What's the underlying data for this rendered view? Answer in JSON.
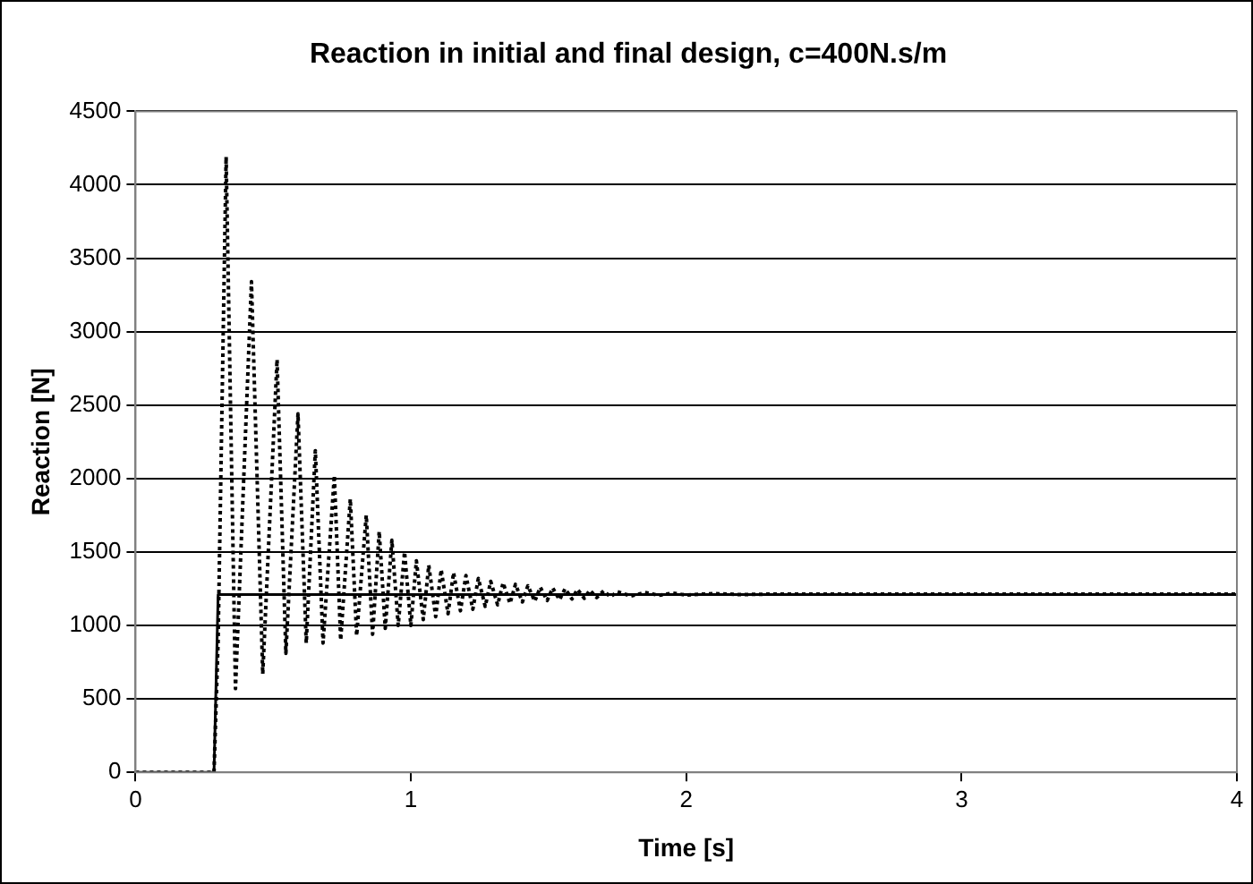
{
  "chart_data": {
    "type": "line",
    "title": "Reaction in initial and final design, c=400N.s/m",
    "xlabel": "Time [s]",
    "ylabel": "Reaction [N]",
    "xlim": [
      0,
      4
    ],
    "xticks": [
      0,
      1,
      2,
      3,
      4
    ],
    "ylim": [
      0,
      4500
    ],
    "yticks": [
      0,
      500,
      1000,
      1500,
      2000,
      2500,
      3000,
      3500,
      4000,
      4500
    ],
    "grid": "y",
    "legend": false,
    "marker": "none",
    "series": [
      {
        "color": "#000000",
        "line_style": "dotted",
        "x": [
          0,
          0.285,
          0.3,
          0.329,
          0.363,
          0.421,
          0.462,
          0.514,
          0.546,
          0.59,
          0.62,
          0.653,
          0.681,
          0.722,
          0.745,
          0.78,
          0.803,
          0.838,
          0.861,
          0.885,
          0.907,
          0.931,
          0.954,
          0.977,
          1.0,
          1.02,
          1.045,
          1.065,
          1.09,
          1.11,
          1.135,
          1.155,
          1.18,
          1.2,
          1.225,
          1.245,
          1.27,
          1.29,
          1.315,
          1.335,
          1.36,
          1.38,
          1.405,
          1.425,
          1.45,
          1.47,
          1.495,
          1.515,
          1.54,
          1.56,
          1.585,
          1.605,
          1.63,
          1.65,
          1.675,
          1.7,
          1.725,
          1.75,
          1.8,
          1.85,
          1.9,
          1.95,
          2.0,
          2.1,
          2.2,
          2.3,
          4
        ],
        "values": [
          0,
          0,
          900,
          4190,
          570,
          3340,
          670,
          2810,
          810,
          2440,
          880,
          2190,
          880,
          2020,
          900,
          1860,
          930,
          1750,
          940,
          1640,
          980,
          1580,
          1000,
          1500,
          1000,
          1440,
          1040,
          1410,
          1060,
          1380,
          1080,
          1360,
          1100,
          1340,
          1110,
          1320,
          1130,
          1300,
          1140,
          1290,
          1150,
          1280,
          1160,
          1270,
          1165,
          1260,
          1170,
          1255,
          1175,
          1250,
          1180,
          1245,
          1185,
          1240,
          1190,
          1235,
          1195,
          1230,
          1200,
          1225,
          1205,
          1220,
          1207,
          1217,
          1210,
          1213,
          1213
        ]
      },
      {
        "color": "#000000",
        "line_style": "solid",
        "x": [
          0,
          0.285,
          0.3,
          4
        ],
        "values": [
          0,
          0,
          1210,
          1210
        ]
      }
    ]
  }
}
